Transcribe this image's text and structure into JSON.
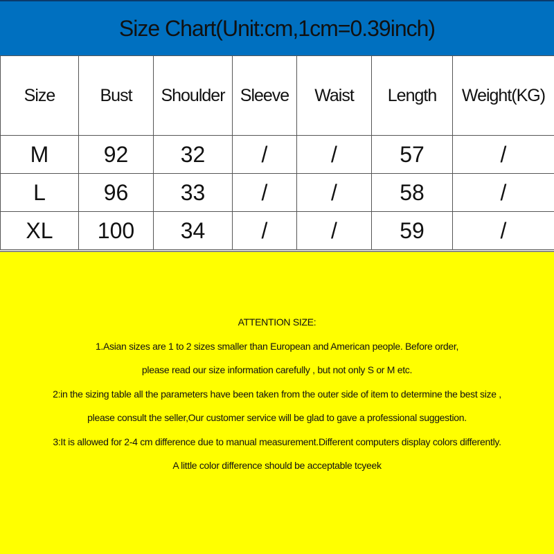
{
  "title": "Size Chart(Unit:cm,1cm=0.39inch)",
  "colors": {
    "header_bg": "#0070C0",
    "notes_bg": "#FFFF00"
  },
  "table": {
    "headers": [
      "Size",
      "Bust",
      "Shoulder",
      "Sleeve",
      "Waist",
      "Length",
      "Weight(KG)"
    ],
    "rows": [
      [
        "M",
        "92",
        "32",
        "/",
        "/",
        "57",
        "/"
      ],
      [
        "L",
        "96",
        "33",
        "/",
        "/",
        "58",
        "/"
      ],
      [
        "XL",
        "100",
        "34",
        "/",
        "/",
        "59",
        "/"
      ]
    ]
  },
  "notes": {
    "lines": [
      "ATTENTION SIZE:",
      "1.Asian sizes are 1 to 2 sizes smaller than European and American people. Before order,",
      "please read our size information carefully ,  but not only S or M etc.",
      "2:in the sizing table all the parameters have been taken from the outer side of item to determine the best size ,",
      "please consult the seller,Our customer service will be glad to gave a professional suggestion.",
      "3:It is allowed for 2-4 cm difference due to manual measurement.Different computers display colors differently.",
      "A little color difference should be acceptable tcyeek"
    ]
  }
}
